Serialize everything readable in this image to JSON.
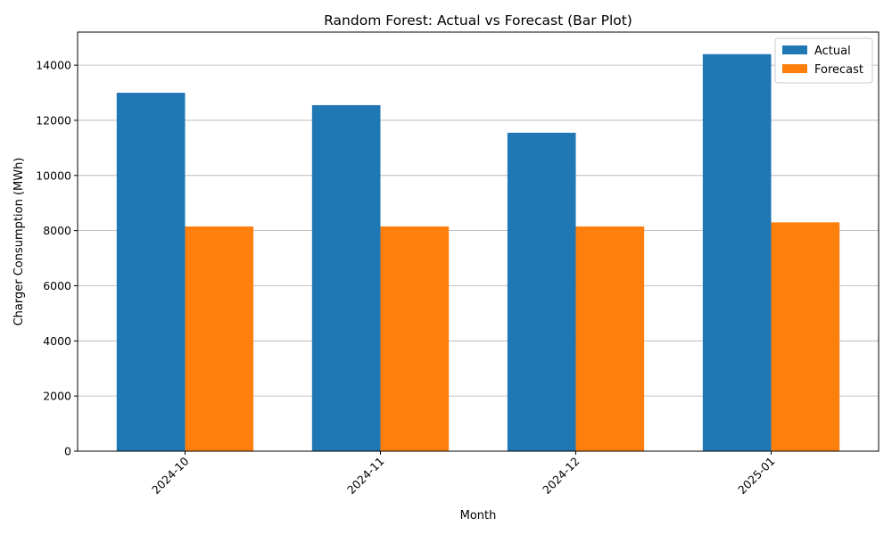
{
  "chart_data": {
    "type": "bar",
    "title": "Random Forest: Actual vs Forecast (Bar Plot)",
    "xlabel": "Month",
    "ylabel": "Charger Consumption (MWh)",
    "categories": [
      "2024-10",
      "2024-11",
      "2024-12",
      "2025-01"
    ],
    "series": [
      {
        "name": "Actual",
        "color": "#1f77b4",
        "values": [
          13000,
          12550,
          11550,
          14400
        ]
      },
      {
        "name": "Forecast",
        "color": "#ff7f0e",
        "values": [
          8150,
          8150,
          8150,
          8300
        ]
      }
    ],
    "ylim": [
      0,
      15200
    ],
    "yticks": [
      0,
      2000,
      4000,
      6000,
      8000,
      10000,
      12000,
      14000
    ],
    "grid": "y-major",
    "legend_position": "top-right",
    "xtick_rotation": 45
  }
}
